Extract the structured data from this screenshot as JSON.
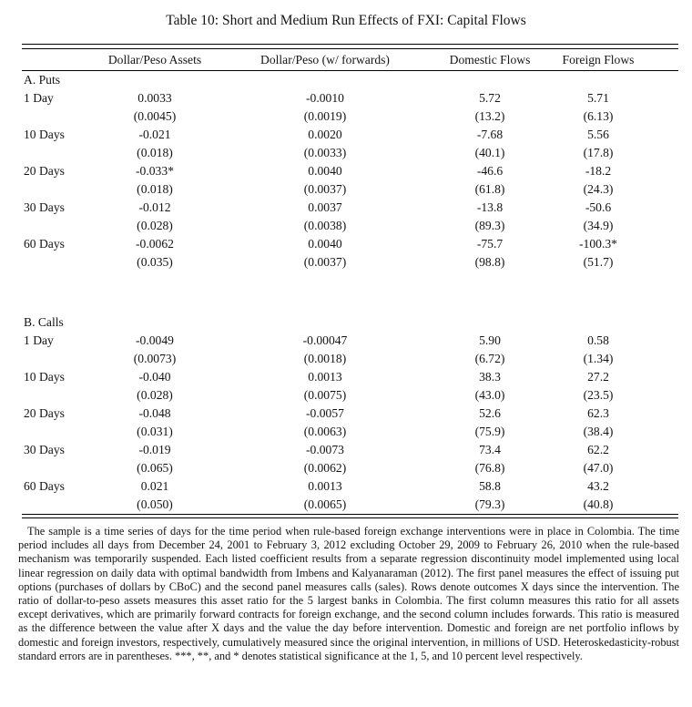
{
  "title": "Table 10: Short and Medium Run Effects of FXI: Capital Flows",
  "table": {
    "columns": [
      "",
      "Dollar/Peso Assets",
      "Dollar/Peso (w/ forwards)",
      "Domestic Flows",
      "Foreign Flows"
    ],
    "panels": [
      {
        "label": "A. Puts",
        "rows": [
          {
            "label": "1 Day",
            "values": [
              "0.0033",
              "-0.0010",
              "5.72",
              "5.71"
            ],
            "se": [
              "(0.0045)",
              "(0.0019)",
              "(13.2)",
              "(6.13)"
            ]
          },
          {
            "label": "10 Days",
            "values": [
              "-0.021",
              "0.0020",
              "-7.68",
              "5.56"
            ],
            "se": [
              "(0.018)",
              "(0.0033)",
              "(40.1)",
              "(17.8)"
            ]
          },
          {
            "label": "20 Days",
            "values": [
              "-0.033*",
              "0.0040",
              "-46.6",
              "-18.2"
            ],
            "se": [
              "(0.018)",
              "(0.0037)",
              "(61.8)",
              "(24.3)"
            ]
          },
          {
            "label": "30 Days",
            "values": [
              "-0.012",
              "0.0037",
              "-13.8",
              "-50.6"
            ],
            "se": [
              "(0.028)",
              "(0.0038)",
              "(89.3)",
              "(34.9)"
            ]
          },
          {
            "label": "60 Days",
            "values": [
              "-0.0062",
              "0.0040",
              "-75.7",
              "-100.3*"
            ],
            "se": [
              "(0.035)",
              "(0.0037)",
              "(98.8)",
              "(51.7)"
            ]
          }
        ]
      },
      {
        "label": "B. Calls",
        "rows": [
          {
            "label": "1 Day",
            "values": [
              "-0.0049",
              "-0.00047",
              "5.90",
              "0.58"
            ],
            "se": [
              "(0.0073)",
              "(0.0018)",
              "(6.72)",
              "(1.34)"
            ]
          },
          {
            "label": "10 Days",
            "values": [
              "-0.040",
              "0.0013",
              "38.3",
              "27.2"
            ],
            "se": [
              "(0.028)",
              "(0.0075)",
              "(43.0)",
              "(23.5)"
            ]
          },
          {
            "label": "20 Days",
            "values": [
              "-0.048",
              "-0.0057",
              "52.6",
              "62.3"
            ],
            "se": [
              "(0.031)",
              "(0.0063)",
              "(75.9)",
              "(38.4)"
            ]
          },
          {
            "label": "30 Days",
            "values": [
              "-0.019",
              "-0.0073",
              "73.4",
              "62.2"
            ],
            "se": [
              "(0.065)",
              "(0.0062)",
              "(76.8)",
              "(47.0)"
            ]
          },
          {
            "label": "60 Days",
            "values": [
              "0.021",
              "0.0013",
              "58.8",
              "43.2"
            ],
            "se": [
              "(0.050)",
              "(0.0065)",
              "(79.3)",
              "(40.8)"
            ]
          }
        ]
      }
    ]
  },
  "footnote": "The sample is a time series of days for the time period when rule-based foreign exchange interventions were in place in Colombia. The time period includes all days from December 24, 2001 to February 3, 2012 excluding October 29, 2009 to February 26, 2010 when the rule-based mechanism was temporarily suspended. Each listed coefficient results from a separate regression discontinuity model implemented using local linear regression on daily data with optimal bandwidth from Imbens and Kalyanaraman (2012). The first panel measures the effect of issuing put options (purchases of dollars by CBoC) and the second panel measures calls (sales). Rows denote outcomes X days since the intervention. The ratio of dollar-to-peso assets measures this asset ratio for the 5 largest banks in Colombia. The first column measures this ratio for all assets except derivatives, which are primarily forward contracts for foreign exchange, and the second column includes forwards. This ratio is measured as the difference between the value after X days and the value the day before intervention. Domestic and foreign are net portfolio inflows by domestic and foreign investors, respectively, cumulatively measured since the original intervention, in millions of USD. Heteroskedasticity-robust standard errors are in parentheses. ***, **, and * denotes statistical significance at the 1, 5, and 10 percent level respectively.",
  "colors": {
    "text": "#141414",
    "background": "#ffffff",
    "rule": "#000000"
  }
}
